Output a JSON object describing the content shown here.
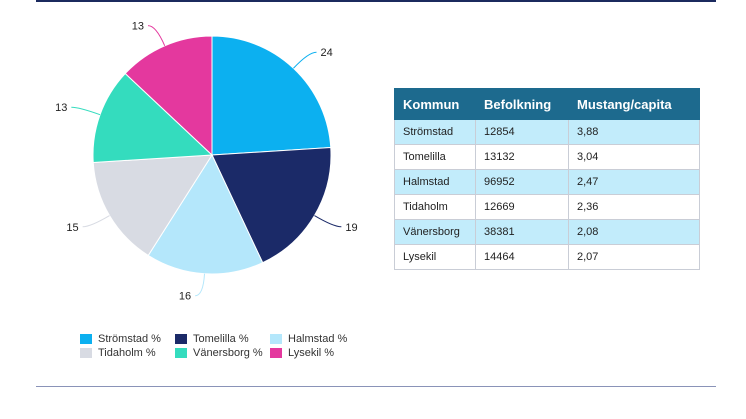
{
  "chart_data": {
    "type": "pie",
    "slices": [
      {
        "name": "Strömstad %",
        "value": 24,
        "label": "24",
        "color": "#0cb0f0"
      },
      {
        "name": "Tomelilla %",
        "value": 19,
        "label": "19",
        "color": "#1b2a68"
      },
      {
        "name": "Halmstad %",
        "value": 16,
        "label": "16",
        "color": "#b4e7fb"
      },
      {
        "name": "Tidaholm %",
        "value": 15,
        "label": "15",
        "color": "#d8dbe3"
      },
      {
        "name": "Vänersborg %",
        "value": 13,
        "label": "13",
        "color": "#34dcbe"
      },
      {
        "name": "Lysekil %",
        "value": 13,
        "label": "13",
        "color": "#e4389e"
      }
    ],
    "legend_position": "bottom-left"
  },
  "table": {
    "headers": [
      "Kommun",
      "Befolkning",
      "Mustang/capita"
    ],
    "rows": [
      [
        "Strömstad",
        "12854",
        "3,88"
      ],
      [
        "Tomelilla",
        "13132",
        "3,04"
      ],
      [
        "Halmstad",
        "96952",
        "2,47"
      ],
      [
        "Tidaholm",
        "12669",
        "2,36"
      ],
      [
        "Vänersborg",
        "38381",
        "2,08"
      ],
      [
        "Lysekil",
        "14464",
        "2,07"
      ]
    ]
  },
  "colors": {
    "header_bg": "#1d6a8e",
    "row_alt_bg": "#c2ecfb",
    "rule": "#1b2a5e"
  }
}
